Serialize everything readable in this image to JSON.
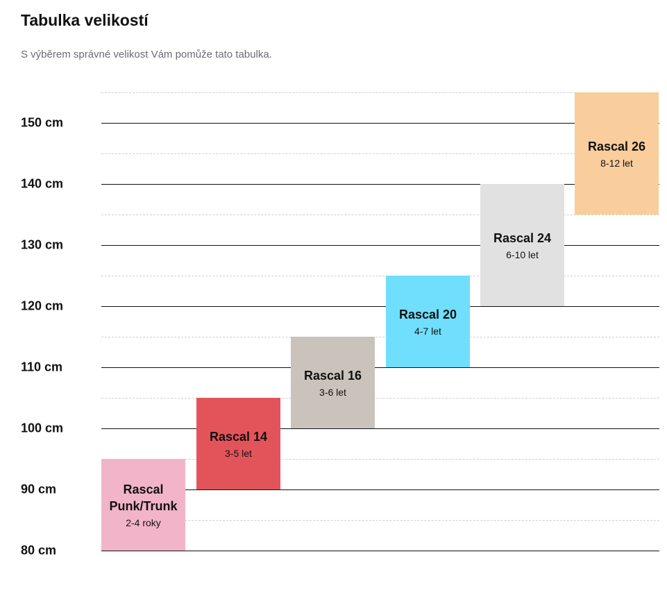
{
  "header": {
    "title": "Tabulka velikostí",
    "subtitle": "S výběrem správné velikost Vám pomůže tato tabulka."
  },
  "chart_data": {
    "type": "bar",
    "subtype": "floating-range",
    "unit": "cm",
    "ylim": [
      80,
      155
    ],
    "yticks": [
      80,
      90,
      100,
      110,
      120,
      130,
      140,
      150
    ],
    "ytick_labels": [
      "80 cm",
      "90 cm",
      "100 cm",
      "110 cm",
      "120 cm",
      "130 cm",
      "140 cm",
      "150 cm"
    ],
    "minor_gridlines_dashed": [
      85,
      95,
      105,
      115,
      125,
      135,
      145,
      155
    ],
    "grid": true,
    "bars": [
      {
        "name": "Rascal Punk/Trunk",
        "age": "2-4 roky",
        "min": 80,
        "max": 95,
        "color": "#f2b4c9"
      },
      {
        "name": "Rascal 14",
        "age": "3-5 let",
        "min": 90,
        "max": 105,
        "color": "#e3545a"
      },
      {
        "name": "Rascal 16",
        "age": "3-6 let",
        "min": 100,
        "max": 115,
        "color": "#c9c3bb"
      },
      {
        "name": "Rascal 20",
        "age": "4-7 let",
        "min": 110,
        "max": 125,
        "color": "#70dffd"
      },
      {
        "name": "Rascal 24",
        "age": "6-10 let",
        "min": 120,
        "max": 140,
        "color": "#e1e1e1"
      },
      {
        "name": "Rascal 26",
        "age": "8-12 let",
        "min": 135,
        "max": 155,
        "color": "#f9cd9c"
      }
    ]
  }
}
